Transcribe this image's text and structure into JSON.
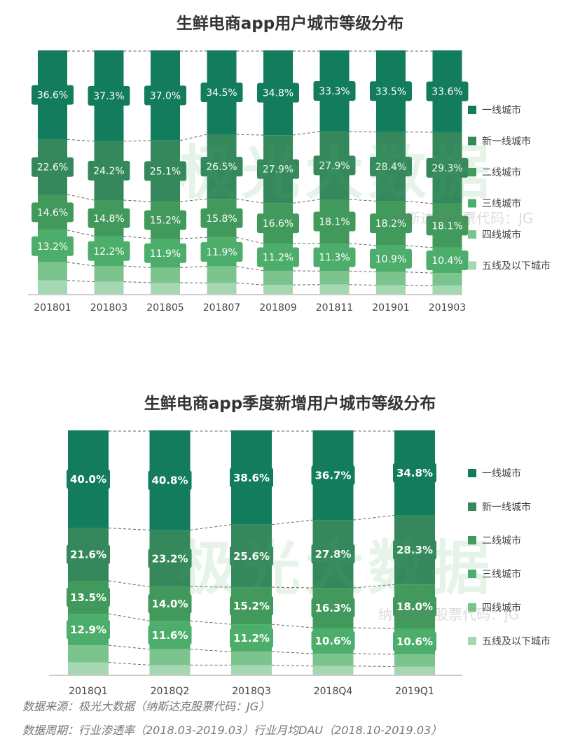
{
  "colors": [
    "#127c5d",
    "#35885c",
    "#41995b",
    "#4cae6a",
    "#7cc48e",
    "#a5d7b3"
  ],
  "watermark": {
    "brand": "极光大数据",
    "sub1": "纳斯达克股票代码：JG",
    "sub2": "纳斯达克股票代码：JG"
  },
  "chart_data": [
    {
      "type": "bar",
      "stacked": true,
      "title": "生鲜电商app用户城市等级分布",
      "categories": [
        "201801",
        "201803",
        "201805",
        "201807",
        "201809",
        "201811",
        "201901",
        "201903"
      ],
      "series": [
        {
          "name": "一线城市",
          "values": [
            36.6,
            37.3,
            37.0,
            34.5,
            34.8,
            33.3,
            33.5,
            33.6
          ],
          "labels": [
            "36.6%",
            "37.3%",
            "37.0%",
            "34.5%",
            "34.8%",
            "33.3%",
            "33.5%",
            "33.6%"
          ]
        },
        {
          "name": "新一线城市",
          "values": [
            22.6,
            24.2,
            25.1,
            26.5,
            27.9,
            27.9,
            28.4,
            29.3
          ],
          "labels": [
            "22.6%",
            "24.2%",
            "25.1%",
            "26.5%",
            "27.9%",
            "27.9%",
            "28.4%",
            "29.3%"
          ]
        },
        {
          "name": "二线城市",
          "values": [
            14.6,
            14.8,
            15.2,
            15.8,
            16.6,
            18.1,
            18.2,
            18.1
          ],
          "labels": [
            "14.6%",
            "14.8%",
            "15.2%",
            "15.8%",
            "16.6%",
            "18.1%",
            "18.2%",
            "18.1%"
          ]
        },
        {
          "name": "三线城市",
          "values": [
            13.2,
            12.2,
            11.9,
            11.9,
            11.2,
            11.3,
            10.9,
            10.4
          ],
          "labels": [
            "13.2%",
            "12.2%",
            "11.9%",
            "11.9%",
            "11.2%",
            "11.3%",
            "10.9%",
            "10.4%"
          ]
        },
        {
          "name": "四线城市",
          "values": [
            7.5,
            6.5,
            6.2,
            6.8,
            5.8,
            5.6,
            5.4,
            5.2
          ],
          "labels": []
        },
        {
          "name": "五线及以下城市",
          "values": [
            5.5,
            5.0,
            4.6,
            4.5,
            3.7,
            3.8,
            3.6,
            3.4
          ],
          "labels": []
        }
      ]
    },
    {
      "type": "bar",
      "stacked": true,
      "title": "生鲜电商app季度新增用户城市等级分布",
      "categories": [
        "2018Q1",
        "2018Q2",
        "2018Q3",
        "2018Q4",
        "2019Q1"
      ],
      "series": [
        {
          "name": "一线城市",
          "values": [
            40.0,
            40.8,
            38.6,
            36.7,
            34.8
          ],
          "labels": [
            "40.0%",
            "40.8%",
            "38.6%",
            "36.7%",
            "34.8%"
          ]
        },
        {
          "name": "新一线城市",
          "values": [
            21.6,
            23.2,
            25.6,
            27.8,
            28.3
          ],
          "labels": [
            "21.6%",
            "23.2%",
            "25.6%",
            "27.8%",
            "28.3%"
          ]
        },
        {
          "name": "二线城市",
          "values": [
            13.5,
            14.0,
            15.2,
            16.3,
            18.0
          ],
          "labels": [
            "13.5%",
            "14.0%",
            "15.2%",
            "16.3%",
            "18.0%"
          ]
        },
        {
          "name": "三线城市",
          "values": [
            12.9,
            11.6,
            11.2,
            10.6,
            10.6
          ],
          "labels": [
            "12.9%",
            "11.6%",
            "11.2%",
            "10.6%",
            "10.6%"
          ]
        },
        {
          "name": "四线城市",
          "values": [
            7.0,
            6.5,
            5.5,
            5.1,
            5.0
          ],
          "labels": []
        },
        {
          "name": "五线及以下城市",
          "values": [
            5.0,
            3.9,
            3.9,
            3.5,
            3.3
          ],
          "labels": []
        }
      ]
    }
  ],
  "footer": {
    "source": "数据来源：极光大数据（纳斯达克股票代码：JG）",
    "period": "数据周期：行业渗透率（2018.03-2019.03）行业月均DAU（2018.10-2019.03）"
  }
}
